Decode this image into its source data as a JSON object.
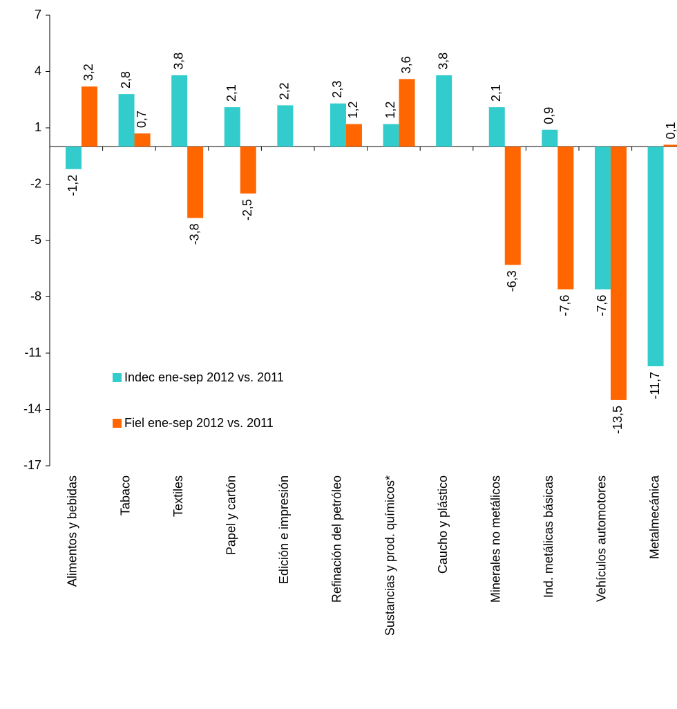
{
  "chart_data": {
    "type": "bar",
    "categories": [
      "Alimentos y bebidas",
      "Tabaco",
      "Textiles",
      "Papel y cartón",
      "Edición e impresión",
      "Refinación del petróleo",
      "Sustancias y prod. químicos*",
      "Caucho y plástico",
      "Minerales no metálicos",
      "Ind. metálicas básicas",
      "Vehículos automotores",
      "Metalmecánica"
    ],
    "series": [
      {
        "name": "Indec ene-sep 2012 vs. 2011",
        "color": "#33cccc",
        "values": [
          -1.2,
          2.8,
          3.8,
          2.1,
          2.2,
          2.3,
          1.2,
          3.8,
          2.1,
          0.9,
          -7.6,
          -11.7
        ],
        "value_labels": [
          "-1,2",
          "2,8",
          "3,8",
          "2,1",
          "2,2",
          "2,3",
          "1,2",
          "3,8",
          "2,1",
          "0,9",
          "-7,6",
          "-11,7"
        ]
      },
      {
        "name": "Fiel ene-sep 2012 vs. 2011",
        "color": "#ff6600",
        "values": [
          3.2,
          0.7,
          -3.8,
          -2.5,
          null,
          1.2,
          3.6,
          null,
          -6.3,
          -7.6,
          -13.5,
          0.1
        ],
        "value_labels": [
          "3,2",
          "0,7",
          "-3,8",
          "-2,5",
          null,
          "1,2",
          "3,6",
          null,
          "-6,3",
          "-7,6",
          "-13,5",
          "0,1"
        ]
      }
    ],
    "ylim": [
      -17,
      7
    ],
    "yticks": [
      -17,
      -14,
      -11,
      -8,
      -5,
      -2,
      1,
      4,
      7
    ],
    "grid": false
  }
}
